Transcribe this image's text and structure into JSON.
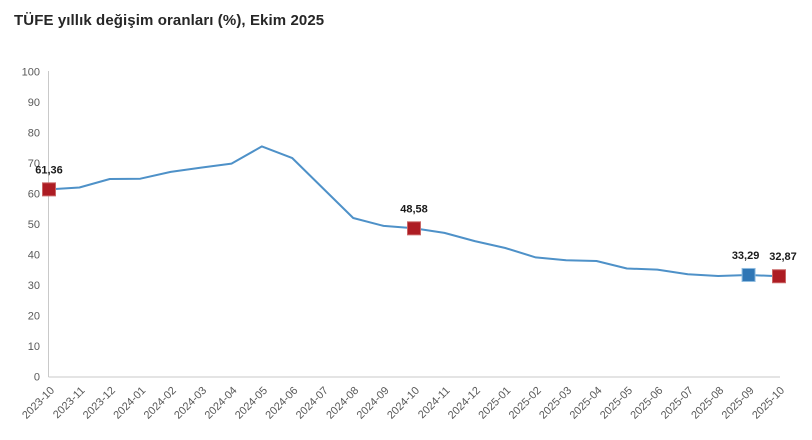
{
  "chart_data": {
    "type": "line",
    "title": "TÜFE yıllık değişim oranları (%), Ekim 2025",
    "categories": [
      "2023-10",
      "2023-11",
      "2023-12",
      "2024-01",
      "2024-02",
      "2024-03",
      "2024-04",
      "2024-05",
      "2024-06",
      "2024-07",
      "2024-08",
      "2024-09",
      "2024-10",
      "2024-11",
      "2024-12",
      "2025-01",
      "2025-02",
      "2025-03",
      "2025-04",
      "2025-05",
      "2025-06",
      "2025-07",
      "2025-08",
      "2025-09",
      "2025-10"
    ],
    "series": [
      {
        "name": "TÜFE yıllık değişim oranı (%)",
        "values": [
          61.36,
          61.98,
          64.77,
          64.86,
          67.07,
          68.5,
          69.8,
          75.45,
          71.6,
          61.78,
          51.97,
          49.38,
          48.58,
          47.09,
          44.38,
          42.12,
          39.05,
          38.1,
          37.86,
          35.41,
          35.05,
          33.52,
          32.95,
          33.29,
          32.87
        ]
      }
    ],
    "annotations": [
      {
        "category": "2023-10",
        "value": 61.36,
        "label": "61,36",
        "marker": "red",
        "label_dx": 0
      },
      {
        "category": "2024-10",
        "value": 48.58,
        "label": "48,58",
        "marker": "red",
        "label_dx": 0
      },
      {
        "category": "2025-09",
        "value": 33.29,
        "label": "33,29",
        "marker": "blue",
        "label_dx": -3
      },
      {
        "category": "2025-10",
        "value": 32.87,
        "label": "32,87",
        "marker": "red",
        "label_dx": 4
      }
    ],
    "ylim": [
      0,
      100
    ],
    "ytick_step": 10,
    "xlabel": "",
    "ylabel": "",
    "grid": false,
    "legend": "none",
    "colors": {
      "line": "#4e91c8",
      "marker_red": "#ad1c23",
      "marker_red_edge": "#c96565",
      "marker_blue": "#2f76b5",
      "marker_blue_edge": "#8fbce0",
      "axis": "#c9c9c9",
      "tick_text": "#595959",
      "point_label_text": "#1a1a1a",
      "title_text": "#262626",
      "background": "#ffffff"
    }
  }
}
